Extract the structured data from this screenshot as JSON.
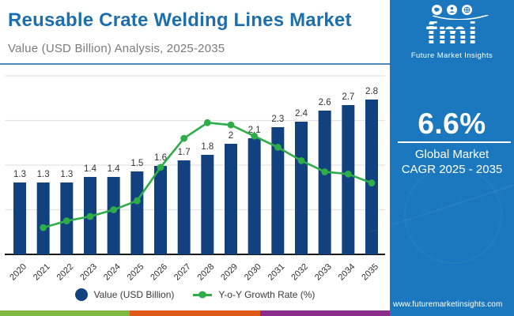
{
  "header": {
    "title": "Reusable Crate Welding Lines Market",
    "subtitle": "Value (USD Billion) Analysis, 2025-2035"
  },
  "logo": {
    "name": "fmi",
    "tagline": "Future Market Insights"
  },
  "sidebar": {
    "cagr_value": "6.6%",
    "cagr_line1": "Global Market",
    "cagr_line2": "CAGR 2025 - 2035",
    "website": "www.futuremarketinsights.com"
  },
  "palette": {
    "title_blue": "#1b6fae",
    "subtitle_gray": "#7b7b7b",
    "bar_navy": "#11417e",
    "line_green": "#2ead49",
    "sidebar_blue": "#1b78be",
    "strip_colors": [
      "#7fb843",
      "#e05a17",
      "#8c2c8c"
    ]
  },
  "chart_data": {
    "type": "bar",
    "title": "Reusable Crate Welding Lines Market",
    "subtitle": "Value (USD Billion) Analysis, 2025-2035",
    "categories": [
      "2020",
      "2021",
      "2022",
      "2023",
      "2024",
      "2025",
      "2026",
      "2027",
      "2028",
      "2029",
      "2030",
      "2031",
      "2032",
      "2033",
      "2034",
      "2035"
    ],
    "series": [
      {
        "name": "Value (USD Billion)",
        "type": "bar",
        "color": "#11417e",
        "values": [
          1.3,
          1.3,
          1.3,
          1.4,
          1.4,
          1.5,
          1.6,
          1.7,
          1.8,
          2,
          2.1,
          2.3,
          2.4,
          2.6,
          2.7,
          2.8
        ],
        "labels": [
          "1.3",
          "1.3",
          "1.3",
          "1.4",
          "1.4",
          "1.5",
          "1.6",
          "1.7",
          "1.8",
          "2",
          "2.1",
          "2.3",
          "2.4",
          "2.6",
          "2.7",
          "2.8"
        ]
      },
      {
        "name": "Y-o-Y Growth Rate (%)",
        "type": "line",
        "color": "#2ead49",
        "values": [
          null,
          1.2,
          1.5,
          1.7,
          2.0,
          2.4,
          3.9,
          5.2,
          5.9,
          5.8,
          5.3,
          4.8,
          4.2,
          3.7,
          3.6,
          3.2
        ]
      }
    ],
    "value_axis": {
      "min": 0,
      "max": 3.25,
      "visible": false
    },
    "growth_axis": {
      "min": 0,
      "max": 8,
      "visible": false,
      "gridline_ticks": [
        2,
        4,
        6,
        8
      ]
    },
    "grid": true,
    "legend_position": "bottom",
    "annotation_cagr": "6.6% Global Market CAGR 2025 - 2035"
  }
}
